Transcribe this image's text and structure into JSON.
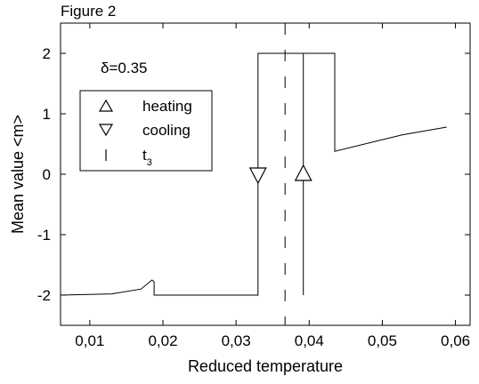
{
  "figure_label": "Figure 2",
  "chart_data": {
    "type": "line",
    "xlabel": "Reduced temperature",
    "ylabel": "Mean value <m>",
    "xlim": [
      0.006,
      0.062
    ],
    "ylim": [
      -2.5,
      2.5
    ],
    "xticks": [
      0.01,
      0.02,
      0.03,
      0.04,
      0.05,
      0.06
    ],
    "xtick_labels": [
      "0,01",
      "0,02",
      "0,03",
      "0,04",
      "0,05",
      "0,06"
    ],
    "yticks": [
      -2,
      -1,
      0,
      1,
      2
    ],
    "ytick_labels": [
      "-2",
      "-1",
      "0",
      "1",
      "2"
    ],
    "annotation": "δ=0.35",
    "legend": {
      "placement": "upper-left",
      "entries": [
        {
          "symbol": "up-triangle",
          "label": "heating"
        },
        {
          "symbol": "down-triangle",
          "label": "cooling"
        },
        {
          "symbol": "vertical-bar",
          "label": "t",
          "subscript": "3"
        }
      ]
    },
    "series": [
      {
        "marker": "line",
        "x": [
          0.006,
          0.013,
          0.017,
          0.0185,
          0.0188,
          0.0188,
          0.033,
          0.033,
          0.0435,
          0.0435,
          0.0527,
          0.0588
        ],
        "y": [
          -2.0,
          -1.98,
          -1.9,
          -1.75,
          -1.78,
          -2.0,
          -2.0,
          2.0,
          2.0,
          0.38,
          0.65,
          0.78
        ]
      },
      {
        "marker": "line",
        "x": [
          0.0392,
          0.0392
        ],
        "y": [
          -2.0,
          2.0
        ]
      }
    ],
    "markers": [
      {
        "symbol": "down-triangle",
        "label": "cooling",
        "x": 0.033,
        "y": 0.0
      },
      {
        "symbol": "up-triangle",
        "label": "heating",
        "x": 0.0392,
        "y": 0.0
      }
    ],
    "t3_line": {
      "x": 0.0367,
      "style": "dashed"
    }
  }
}
